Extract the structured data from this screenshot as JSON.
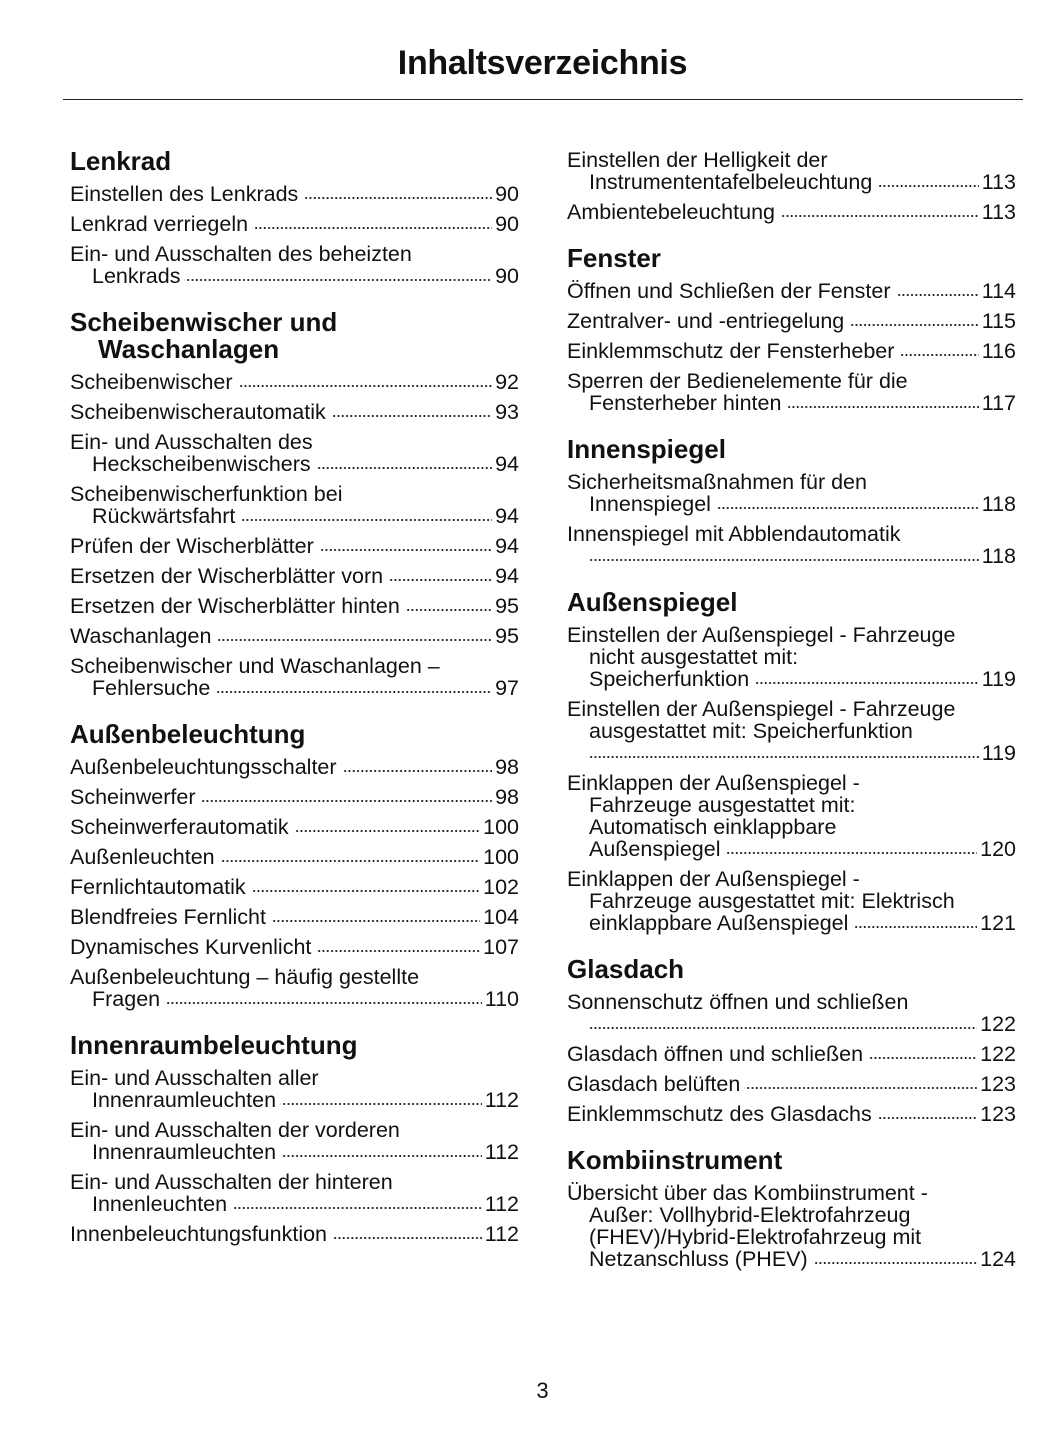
{
  "title": "Inhaltsverzeichnis",
  "page_number": "3",
  "columns": [
    [
      {
        "heading": [
          "Lenkrad"
        ],
        "entries": [
          {
            "lines": [
              "Einstellen des Lenkrads"
            ],
            "page": "90"
          },
          {
            "lines": [
              "Lenkrad verriegeln"
            ],
            "page": "90"
          },
          {
            "lines": [
              "Ein- und Ausschalten des beheizten",
              "Lenkrads"
            ],
            "page": "90"
          }
        ]
      },
      {
        "heading": [
          "Scheibenwischer und",
          "Waschanlagen"
        ],
        "entries": [
          {
            "lines": [
              "Scheibenwischer"
            ],
            "page": "92"
          },
          {
            "lines": [
              "Scheibenwischerautomatik"
            ],
            "page": "93"
          },
          {
            "lines": [
              "Ein- und Ausschalten des",
              "Heckscheibenwischers"
            ],
            "page": "94"
          },
          {
            "lines": [
              "Scheibenwischerfunktion bei",
              "Rückwärtsfahrt"
            ],
            "page": "94"
          },
          {
            "lines": [
              "Prüfen der Wischerblätter"
            ],
            "page": "94"
          },
          {
            "lines": [
              "Ersetzen der Wischerblätter vorn"
            ],
            "page": "94"
          },
          {
            "lines": [
              "Ersetzen der Wischerblätter hinten"
            ],
            "page": "95"
          },
          {
            "lines": [
              "Waschanlagen"
            ],
            "page": "95"
          },
          {
            "lines": [
              "Scheibenwischer und Waschanlagen –",
              "Fehlersuche"
            ],
            "page": "97"
          }
        ]
      },
      {
        "heading": [
          "Außenbeleuchtung"
        ],
        "entries": [
          {
            "lines": [
              "Außenbeleuchtungsschalter"
            ],
            "page": "98"
          },
          {
            "lines": [
              "Scheinwerfer"
            ],
            "page": "98"
          },
          {
            "lines": [
              "Scheinwerferautomatik"
            ],
            "page": "100"
          },
          {
            "lines": [
              "Außenleuchten"
            ],
            "page": "100"
          },
          {
            "lines": [
              "Fernlichtautomatik"
            ],
            "page": "102"
          },
          {
            "lines": [
              "Blendfreies Fernlicht"
            ],
            "page": "104"
          },
          {
            "lines": [
              "Dynamisches Kurvenlicht"
            ],
            "page": "107"
          },
          {
            "lines": [
              "Außenbeleuchtung – häufig gestellte",
              "Fragen"
            ],
            "page": "110"
          }
        ]
      },
      {
        "heading": [
          "Innenraumbeleuchtung"
        ],
        "entries": [
          {
            "lines": [
              "Ein- und Ausschalten aller",
              "Innenraumleuchten"
            ],
            "page": "112"
          },
          {
            "lines": [
              "Ein- und Ausschalten der vorderen",
              "Innenraumleuchten"
            ],
            "page": "112"
          },
          {
            "lines": [
              "Ein- und Ausschalten der hinteren",
              "Innenleuchten"
            ],
            "page": "112"
          },
          {
            "lines": [
              "Innenbeleuchtungsfunktion"
            ],
            "page": "112"
          }
        ]
      }
    ],
    [
      {
        "heading": [],
        "entries": [
          {
            "lines": [
              "Einstellen der Helligkeit der",
              "Instrumententafelbeleuchtung"
            ],
            "page": "113"
          },
          {
            "lines": [
              "Ambientebeleuchtung"
            ],
            "page": "113"
          }
        ]
      },
      {
        "heading": [
          "Fenster"
        ],
        "entries": [
          {
            "lines": [
              "Öffnen und Schließen der Fenster"
            ],
            "page": "114"
          },
          {
            "lines": [
              "Zentralver- und -entriegelung"
            ],
            "page": "115"
          },
          {
            "lines": [
              "Einklemmschutz der Fensterheber"
            ],
            "page": "116"
          },
          {
            "lines": [
              "Sperren der Bedienelemente für die",
              "Fensterheber hinten"
            ],
            "page": "117"
          }
        ]
      },
      {
        "heading": [
          "Innenspiegel"
        ],
        "entries": [
          {
            "lines": [
              "Sicherheitsmaßnahmen für den",
              "Innenspiegel"
            ],
            "page": "118"
          },
          {
            "lines": [
              "Innenspiegel mit Abblendautomatik",
              ""
            ],
            "page": "118"
          }
        ]
      },
      {
        "heading": [
          "Außenspiegel"
        ],
        "entries": [
          {
            "lines": [
              "Einstellen der Außenspiegel - Fahrzeuge",
              "nicht ausgestattet mit:",
              "Speicherfunktion"
            ],
            "page": "119"
          },
          {
            "lines": [
              "Einstellen der Außenspiegel - Fahrzeuge",
              "ausgestattet mit: Speicherfunktion",
              ""
            ],
            "page": "119"
          },
          {
            "lines": [
              "Einklappen der Außenspiegel -",
              "Fahrzeuge ausgestattet mit:",
              "Automatisch einklappbare",
              "Außenspiegel"
            ],
            "page": "120"
          },
          {
            "lines": [
              "Einklappen der Außenspiegel -",
              "Fahrzeuge ausgestattet mit: Elektrisch",
              "einklappbare Außenspiegel"
            ],
            "page": "121"
          }
        ]
      },
      {
        "heading": [
          "Glasdach"
        ],
        "entries": [
          {
            "lines": [
              "Sonnenschutz öffnen und schließen",
              ""
            ],
            "page": "122"
          },
          {
            "lines": [
              "Glasdach öffnen und schließen"
            ],
            "page": "122"
          },
          {
            "lines": [
              "Glasdach belüften"
            ],
            "page": "123"
          },
          {
            "lines": [
              "Einklemmschutz des Glasdachs"
            ],
            "page": "123"
          }
        ]
      },
      {
        "heading": [
          "Kombiinstrument"
        ],
        "entries": [
          {
            "lines": [
              "Übersicht über das Kombiinstrument -",
              "Außer: Vollhybrid-Elektrofahrzeug",
              "(FHEV)/Hybrid-Elektrofahrzeug mit",
              "Netzanschluss (PHEV)"
            ],
            "page": "124"
          }
        ]
      }
    ]
  ]
}
